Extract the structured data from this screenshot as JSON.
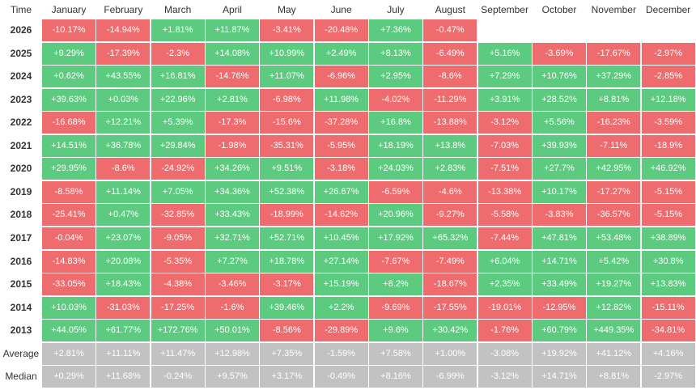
{
  "header": {
    "time_label": "Time",
    "months": [
      "January",
      "February",
      "March",
      "April",
      "May",
      "June",
      "July",
      "August",
      "September",
      "October",
      "November",
      "December"
    ]
  },
  "colors": {
    "positive": "#5ccb7f",
    "negative": "#ee6b6e",
    "summary": "#c2c2c2"
  },
  "rows": [
    {
      "year": "2026",
      "values": [
        "-10.17%",
        "-14.94%",
        "+1.81%",
        "+11.87%",
        "-3.41%",
        "-20.48%",
        "+7.36%",
        "-0.47%",
        "",
        "",
        "",
        ""
      ]
    },
    {
      "year": "2025",
      "values": [
        "+9.29%",
        "-17.39%",
        "-2.3%",
        "+14.08%",
        "+10.99%",
        "+2.49%",
        "+8.13%",
        "-6.49%",
        "+5.16%",
        "-3.69%",
        "-17.67%",
        "-2.97%"
      ]
    },
    {
      "year": "2024",
      "values": [
        "+0.62%",
        "+43.55%",
        "+16.81%",
        "-14.76%",
        "+11.07%",
        "-6.96%",
        "+2.95%",
        "-8.6%",
        "+7.29%",
        "+10.76%",
        "+37.29%",
        "-2.85%"
      ]
    },
    {
      "year": "2023",
      "values": [
        "+39.63%",
        "+0.03%",
        "+22.96%",
        "+2.81%",
        "-6.98%",
        "+11.98%",
        "-4.02%",
        "-11.29%",
        "+3.91%",
        "+28.52%",
        "+8.81%",
        "+12.18%"
      ]
    },
    {
      "year": "2022",
      "values": [
        "-16.68%",
        "+12.21%",
        "+5.39%",
        "-17.3%",
        "-15.6%",
        "-37.28%",
        "+16.8%",
        "-13.88%",
        "-3.12%",
        "+5.56%",
        "-16.23%",
        "-3.59%"
      ]
    },
    {
      "year": "2021",
      "values": [
        "+14.51%",
        "+36.78%",
        "+29.84%",
        "-1.98%",
        "-35.31%",
        "-5.95%",
        "+18.19%",
        "+13.8%",
        "-7.03%",
        "+39.93%",
        "-7.11%",
        "-18.9%"
      ]
    },
    {
      "year": "2020",
      "values": [
        "+29.95%",
        "-8.6%",
        "-24.92%",
        "+34.26%",
        "+9.51%",
        "-3.18%",
        "+24.03%",
        "+2.83%",
        "-7.51%",
        "+27.7%",
        "+42.95%",
        "+46.92%"
      ]
    },
    {
      "year": "2019",
      "values": [
        "-8.58%",
        "+11.14%",
        "+7.05%",
        "+34.36%",
        "+52.38%",
        "+26.67%",
        "-6.59%",
        "-4.6%",
        "-13.38%",
        "+10.17%",
        "-17.27%",
        "-5.15%"
      ]
    },
    {
      "year": "2018",
      "values": [
        "-25.41%",
        "+0.47%",
        "-32.85%",
        "+33.43%",
        "-18.99%",
        "-14.62%",
        "+20.96%",
        "-9.27%",
        "-5.58%",
        "-3.83%",
        "-36.57%",
        "-5.15%"
      ]
    },
    {
      "year": "2017",
      "values": [
        "-0.04%",
        "+23.07%",
        "-9.05%",
        "+32.71%",
        "+52.71%",
        "+10.45%",
        "+17.92%",
        "+65.32%",
        "-7.44%",
        "+47.81%",
        "+53.48%",
        "+38.89%"
      ]
    },
    {
      "year": "2016",
      "values": [
        "-14.83%",
        "+20.08%",
        "-5.35%",
        "+7.27%",
        "+18.78%",
        "+27.14%",
        "-7.67%",
        "-7.49%",
        "+6.04%",
        "+14.71%",
        "+5.42%",
        "+30.8%"
      ]
    },
    {
      "year": "2015",
      "values": [
        "-33.05%",
        "+18.43%",
        "-4.38%",
        "-3.46%",
        "-3.17%",
        "+15.19%",
        "+8.2%",
        "-18.67%",
        "+2.35%",
        "+33.49%",
        "+19.27%",
        "+13.83%"
      ]
    },
    {
      "year": "2014",
      "values": [
        "+10.03%",
        "-31.03%",
        "-17.25%",
        "-1.6%",
        "+39.46%",
        "+2.2%",
        "-9.69%",
        "-17.55%",
        "-19.01%",
        "-12.95%",
        "+12.82%",
        "-15.11%"
      ]
    },
    {
      "year": "2013",
      "values": [
        "+44.05%",
        "+61.77%",
        "+172.76%",
        "+50.01%",
        "-8.56%",
        "-29.89%",
        "+9.6%",
        "+30.42%",
        "-1.76%",
        "+60.79%",
        "+449.35%",
        "-34.81%"
      ]
    }
  ],
  "summary": [
    {
      "label": "Average",
      "values": [
        "+2.81%",
        "+11.11%",
        "+11.47%",
        "+12.98%",
        "+7.35%",
        "-1.59%",
        "+7.58%",
        "+1.00%",
        "-3.08%",
        "+19.92%",
        "+41.12%",
        "+4.16%"
      ]
    },
    {
      "label": "Median",
      "values": [
        "+0.29%",
        "+11.68%",
        "-0.24%",
        "+9.57%",
        "+3.17%",
        "-0.49%",
        "+8.16%",
        "-6.99%",
        "-3.12%",
        "+14.71%",
        "+8.81%",
        "-2.97%"
      ]
    }
  ]
}
